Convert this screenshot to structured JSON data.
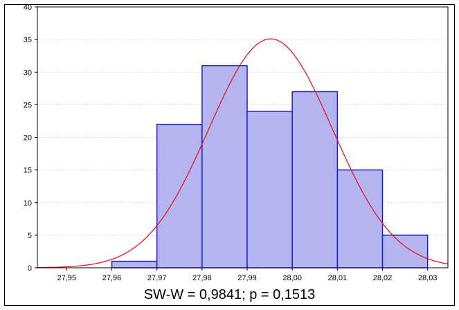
{
  "chart_data": {
    "type": "bar",
    "subtype": "histogram-with-normal-fit",
    "bins": [
      {
        "from": 27.96,
        "to": 27.97,
        "count": 1
      },
      {
        "from": 27.97,
        "to": 27.98,
        "count": 22
      },
      {
        "from": 27.98,
        "to": 27.99,
        "count": 31
      },
      {
        "from": 27.99,
        "to": 28.0,
        "count": 24
      },
      {
        "from": 28.0,
        "to": 28.01,
        "count": 27
      },
      {
        "from": 28.01,
        "to": 28.02,
        "count": 15
      },
      {
        "from": 28.02,
        "to": 28.03,
        "count": 5
      }
    ],
    "x_ticks": [
      "27,95",
      "27,96",
      "27,97",
      "27,98",
      "27,99",
      "28,00",
      "28,01",
      "28,02",
      "28,03"
    ],
    "x_tick_values": [
      27.95,
      27.96,
      27.97,
      27.98,
      27.99,
      28.0,
      28.01,
      28.02,
      28.03
    ],
    "y_ticks": [
      "0",
      "5",
      "10",
      "15",
      "20",
      "25",
      "30",
      "35",
      "40"
    ],
    "y_tick_values": [
      0,
      5,
      10,
      15,
      20,
      25,
      30,
      35,
      40
    ],
    "xlim": [
      27.9435,
      28.0345
    ],
    "ylim": [
      0,
      40
    ],
    "normal_curve": {
      "mean": 27.9952,
      "sd": 0.0137,
      "peak": 35.1
    },
    "grid": "horizontal-dotted",
    "caption": "SW-W = 0,9841; p = 0,1513",
    "colors": {
      "bar_fill": "#b4b4f0",
      "bar_stroke": "#1e1ec8",
      "curve": "#e8141e",
      "axis": "#000000",
      "grid": "#c8c8c8"
    }
  }
}
